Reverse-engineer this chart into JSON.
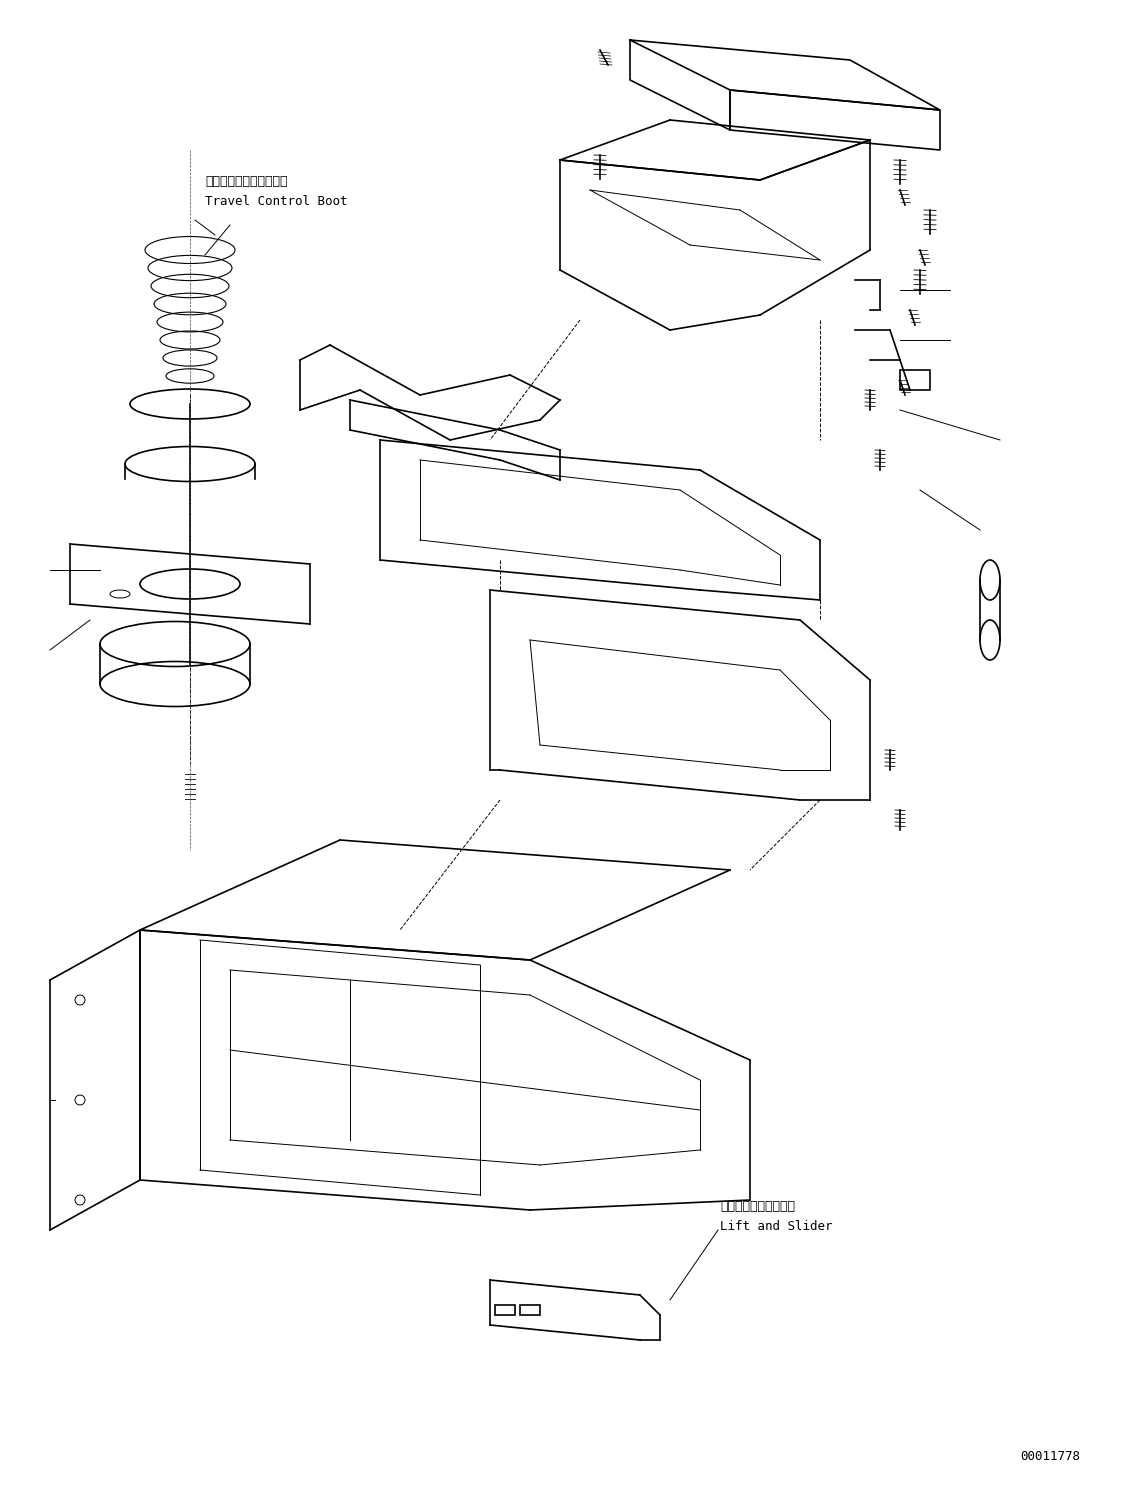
{
  "figure_width": 11.37,
  "figure_height": 14.89,
  "bg_color": "#ffffff",
  "line_color": "#000000",
  "label_travel_control_jp": "走行コントロールブート",
  "label_travel_control_en": "Travel Control Boot",
  "label_lift_slider_jp": "リフトおよびスライダ",
  "label_lift_slider_en": "Lift and Slider",
  "part_number": "00011778",
  "font_size_labels": 9,
  "font_size_partnumber": 9
}
